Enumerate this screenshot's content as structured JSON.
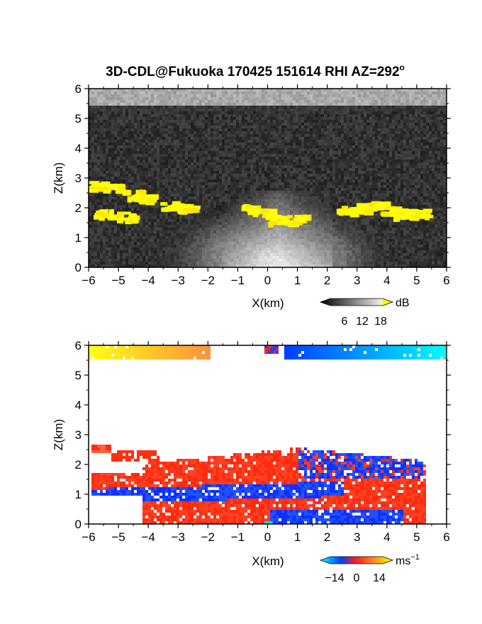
{
  "title": "3D-CDL@Fukuoka 170425 151614 RHI AZ=292",
  "title_suffix": "o",
  "chart_data": [
    {
      "type": "heatmap",
      "name": "backscatter-snr",
      "xlabel": "X(km)",
      "ylabel": "Z(km)",
      "xlim": [
        -6,
        6
      ],
      "ylim": [
        0,
        6
      ],
      "xticks": [
        "-6",
        "-5",
        "-4",
        "-3",
        "-2",
        "-1",
        "0",
        "1",
        "2",
        "3",
        "4",
        "5",
        "6"
      ],
      "yticks": [
        "0",
        "1",
        "2",
        "3",
        "4",
        "5",
        "6"
      ],
      "colorbar": {
        "unit": "dB",
        "ticks": [
          "6",
          "12",
          "18"
        ],
        "range": [
          0,
          20
        ],
        "colormap": "grayscale-to-yellow"
      },
      "features": [
        {
          "label": "noise-floor",
          "z_range": [
            0,
            6
          ],
          "value_db": 3
        },
        {
          "label": "top-band",
          "z_range": [
            5.5,
            6
          ],
          "value_db": 11
        },
        {
          "label": "boundary-layer-glow",
          "x": 0.2,
          "z": 0.4,
          "value_db": 16
        },
        {
          "label": "cloud-clusters",
          "value_db": 18,
          "points": [
            [
              -5.8,
              2.8
            ],
            [
              -5.3,
              2.7
            ],
            [
              -4.6,
              2.5
            ],
            [
              -4.2,
              2.35
            ],
            [
              -3.3,
              2.1
            ],
            [
              -2.8,
              2.05
            ],
            [
              -0.6,
              2.0
            ],
            [
              -0.2,
              1.85
            ],
            [
              0.3,
              1.65
            ],
            [
              0.9,
              1.65
            ],
            [
              2.6,
              1.95
            ],
            [
              3.2,
              2.05
            ],
            [
              3.6,
              2.15
            ],
            [
              4.0,
              1.95
            ],
            [
              4.5,
              1.85
            ],
            [
              5.0,
              1.85
            ],
            [
              -5.6,
              1.85
            ],
            [
              -4.8,
              1.75
            ]
          ]
        }
      ]
    },
    {
      "type": "heatmap",
      "name": "doppler-velocity",
      "xlabel": "X(km)",
      "ylabel": "Z(km)",
      "xlim": [
        -6,
        6
      ],
      "ylim": [
        0,
        6
      ],
      "xticks": [
        "-6",
        "-5",
        "-4",
        "-3",
        "-2",
        "-1",
        "0",
        "1",
        "2",
        "3",
        "4",
        "5",
        "6"
      ],
      "yticks": [
        "0",
        "1",
        "2",
        "3",
        "4",
        "5",
        "6"
      ],
      "colorbar": {
        "unit": "ms",
        "unit_sup": "−1",
        "ticks": [
          "−14",
          "0",
          "14"
        ],
        "range": [
          -16,
          16
        ],
        "colormap": "cyan-blue-red-yellow"
      },
      "features": [
        {
          "label": "top-band-negative-x",
          "x_range": [
            -6,
            -1.8
          ],
          "z_range": [
            5.55,
            6
          ],
          "velocity": 13
        },
        {
          "label": "top-band-positive-x",
          "x_range": [
            0.5,
            6
          ],
          "z_range": [
            5.55,
            6
          ],
          "velocity": -11
        },
        {
          "label": "lower-layer-red",
          "x_range": [
            -3.5,
            5.2
          ],
          "z_range": [
            0.7,
            2.6
          ],
          "velocity": 4
        },
        {
          "label": "lower-layer-blue",
          "x_range": [
            -5.5,
            4.5
          ],
          "z_range": [
            0.2,
            1.8
          ],
          "velocity": -4
        },
        {
          "label": "left-cluster",
          "x_range": [
            -6,
            -4.5
          ],
          "z_range": [
            2.5,
            3.1
          ],
          "velocity": -3
        }
      ]
    }
  ]
}
